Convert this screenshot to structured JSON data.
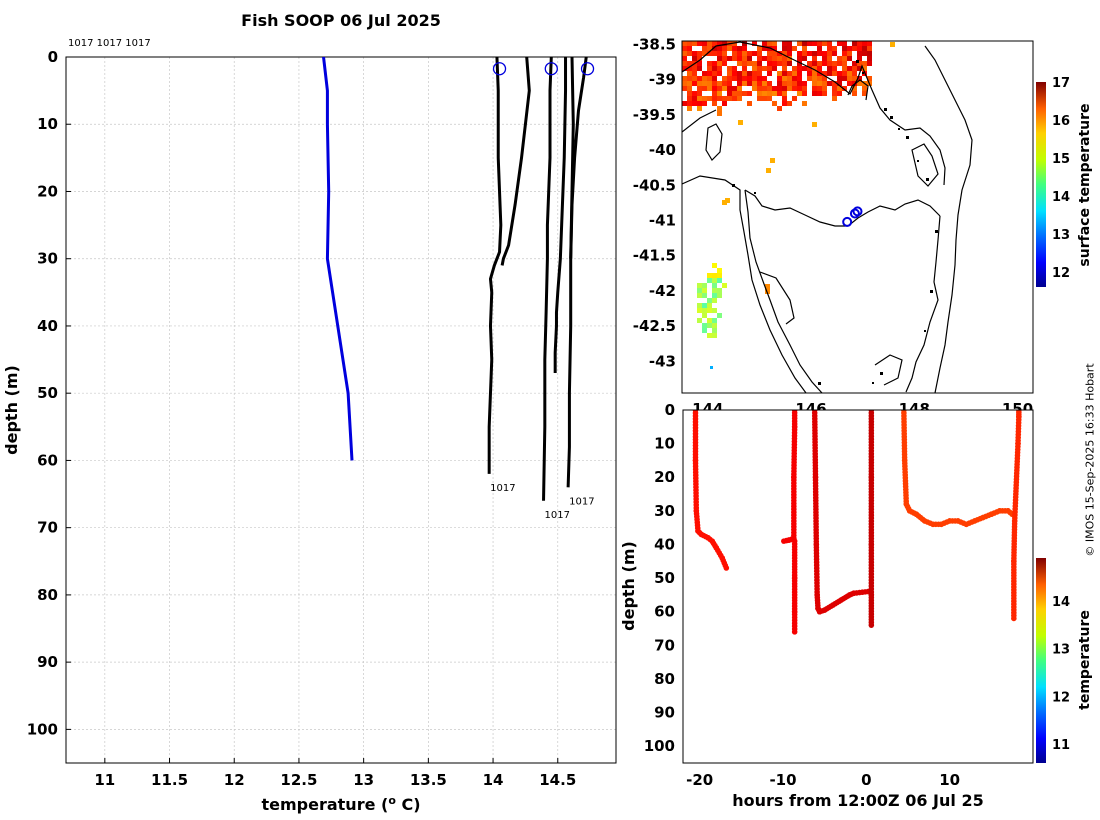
{
  "credit": "© IMOS 15-Sep-2025 16:33 Hobart",
  "colors": {
    "profile_current": "#0000dd",
    "profile_previous": "#000000",
    "coast": "#000000"
  },
  "chart_data": [
    {
      "type": "line",
      "title": "Fish SOOP 06 Jul 2025",
      "xlabel": "temperature (°C)",
      "xlabel_main": "temperature (",
      "xlabel_sup": "o",
      "xlabel_end": " C)",
      "ylabel": "depth (m)",
      "xlim": [
        10.7,
        14.95
      ],
      "ylim": [
        0,
        105
      ],
      "xticks": [
        "11",
        "11.5",
        "12",
        "12.5",
        "13",
        "13.5",
        "14",
        "14.5"
      ],
      "yticks": [
        "0",
        "10",
        "20",
        "30",
        "40",
        "50",
        "60",
        "70",
        "80",
        "90",
        "100"
      ],
      "top_labels": "1017 1017 1017",
      "series": [
        {
          "name": "current",
          "color": "#0000dd",
          "x": [
            12.69,
            12.72,
            12.72,
            12.73,
            12.72,
            12.76,
            12.84,
            12.88,
            12.91
          ],
          "y": [
            0,
            5,
            10,
            20,
            30,
            35,
            45,
            50,
            60
          ]
        },
        {
          "name": "1017 a",
          "color": "#000000",
          "label": "1017",
          "x": [
            14.03,
            14.04,
            14.04,
            14.06,
            14.05,
            14.01,
            13.98,
            13.99,
            13.98,
            13.99,
            13.97,
            13.97
          ],
          "y": [
            0,
            5,
            15,
            25,
            29,
            31,
            33,
            35,
            40,
            45,
            55,
            62
          ]
        },
        {
          "name": "1017 b",
          "color": "#000000",
          "x": [
            14.26,
            14.28,
            14.22,
            14.17,
            14.12,
            14.08,
            14.07
          ],
          "y": [
            0,
            5,
            15,
            22,
            28,
            30,
            31
          ]
        },
        {
          "name": "1017 c",
          "color": "#000000",
          "label": "1017",
          "x": [
            14.45,
            14.44,
            14.44,
            14.42,
            14.42,
            14.41,
            14.4,
            14.4,
            14.39
          ],
          "y": [
            0,
            5,
            15,
            25,
            30,
            38,
            45,
            55,
            66
          ]
        },
        {
          "name": "1017 d",
          "color": "#000000",
          "x": [
            14.56,
            14.56,
            14.55,
            14.53,
            14.52,
            14.5,
            14.49,
            14.49,
            14.48,
            14.48
          ],
          "y": [
            0,
            5,
            15,
            25,
            30,
            35,
            38,
            40,
            44,
            47
          ]
        },
        {
          "name": "1017 e",
          "color": "#000000",
          "label": "1017",
          "x": [
            14.61,
            14.62,
            14.61,
            14.6,
            14.6,
            14.59,
            14.59,
            14.58
          ],
          "y": [
            0,
            10,
            20,
            30,
            40,
            50,
            58,
            64
          ]
        },
        {
          "name": "1017 f",
          "color": "#000000",
          "x": [
            14.72,
            14.7,
            14.66,
            14.63,
            14.61,
            14.6
          ],
          "y": [
            0,
            3,
            8,
            15,
            22,
            30
          ]
        }
      ],
      "surface_markers": {
        "x": [
          14.05,
          14.45,
          14.73
        ],
        "y": [
          1,
          1,
          1
        ]
      }
    },
    {
      "type": "heatmap",
      "name": "sea surface temperature map",
      "colorbar_label": "surface temperature",
      "colorbar_range": [
        11.6,
        17
      ],
      "colorbar_ticks": [
        "12",
        "13",
        "14",
        "15",
        "16",
        "17"
      ],
      "xlim": [
        143.5,
        150.3
      ],
      "ylim": [
        -43.45,
        -38.45
      ],
      "xticks": [
        "144",
        "146",
        "148",
        "150"
      ],
      "yticks": [
        "-38.5",
        "-39",
        "-39.5",
        "-40",
        "-40.5",
        "-41",
        "-41.5",
        "-42",
        "-42.5",
        "-43"
      ],
      "deployment_positions": {
        "lon": [
          146.7,
          146.85,
          146.9
        ],
        "lat": [
          -41.02,
          -40.9,
          -40.87
        ]
      },
      "warm_patch_temperature": 16.2,
      "cold_patch_temperature": 14.5
    },
    {
      "type": "scatter",
      "name": "depth time section",
      "xlabel": "hours from 12:00Z 06 Jul 25",
      "ylabel": "depth (m)",
      "colorbar_label": "temperature",
      "xlim": [
        -22,
        20
      ],
      "ylim": [
        0,
        105
      ],
      "clim": [
        10.6,
        14.9
      ],
      "xticks": [
        "-20",
        "-10",
        "0",
        "10"
      ],
      "yticks": [
        "0",
        "10",
        "20",
        "30",
        "40",
        "50",
        "60",
        "70",
        "80",
        "90",
        "100"
      ],
      "colorbar_ticks": [
        "11",
        "12",
        "13",
        "14"
      ],
      "segments": [
        {
          "temp": 14.3,
          "x": [
            -20.5,
            -20.5,
            -20.4,
            -20.2,
            -19.8,
            -19.0,
            -18.5,
            -18.0,
            -17.3,
            -16.8
          ],
          "y": [
            0,
            15,
            30,
            36,
            37,
            38,
            39,
            41,
            44,
            47
          ]
        },
        {
          "temp": 14.4,
          "x": [
            -9.9,
            -9.3,
            -9.0,
            -8.7,
            -8.7,
            -8.6,
            -8.6
          ],
          "y": [
            39,
            38.7,
            38.5,
            38.2,
            20,
            5,
            0
          ]
        },
        {
          "temp": 14.4,
          "x": [
            -8.6,
            -8.6,
            -8.6,
            -8.6
          ],
          "y": [
            39,
            50,
            60,
            66
          ]
        },
        {
          "temp": 14.5,
          "x": [
            -6.2,
            -6.1,
            -6.0,
            -5.9,
            -5.8,
            -5.6,
            -5.0,
            -4.0,
            -3.0,
            -2.0,
            -1.5,
            0.2
          ],
          "y": [
            0,
            20,
            40,
            55,
            59,
            60,
            59.5,
            58,
            56.5,
            55,
            54.5,
            54
          ]
        },
        {
          "temp": 14.6,
          "x": [
            0.6,
            0.6,
            0.6,
            0.6,
            0.6
          ],
          "y": [
            0,
            20,
            40,
            55,
            64
          ]
        },
        {
          "temp": 14.1,
          "x": [
            4.5,
            4.6,
            4.8,
            5.2,
            6.0,
            7.0,
            8.0,
            9.0,
            10.0,
            11.0,
            12.0,
            13.0,
            14.0,
            15.0,
            16.0,
            17.0,
            17.5
          ],
          "y": [
            0,
            15,
            28,
            30,
            31,
            33,
            34,
            34,
            33,
            33,
            34,
            33,
            32,
            31,
            30,
            30,
            31
          ]
        },
        {
          "temp": 14.2,
          "x": [
            17.7,
            17.7,
            17.8,
            18.2,
            18.3,
            18.3
          ],
          "y": [
            62,
            45,
            33,
            10,
            2,
            0
          ]
        }
      ]
    }
  ]
}
